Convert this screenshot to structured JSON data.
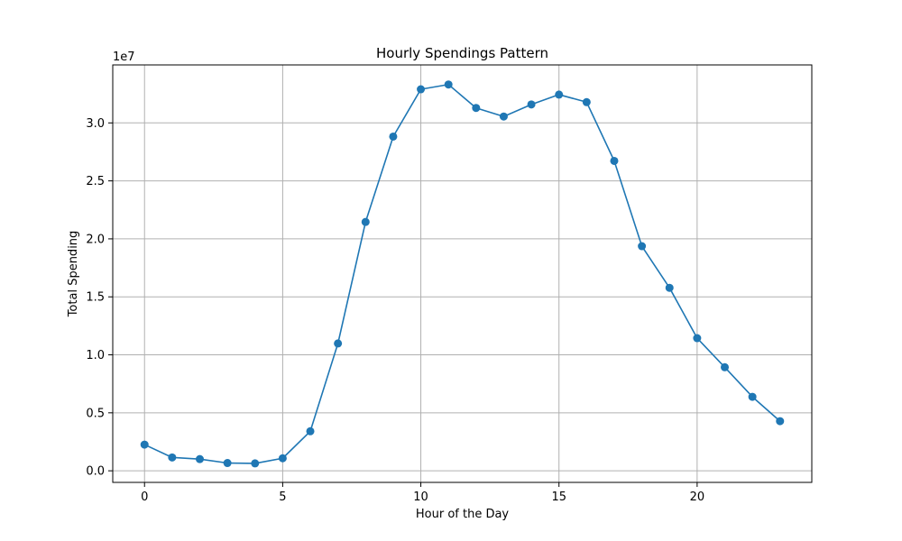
{
  "chart_data": {
    "type": "line",
    "title": "Hourly Spendings Pattern",
    "xlabel": "Hour of the Day",
    "ylabel": "Total Spending",
    "y_offset_label": "1e7",
    "xlim": [
      -1.15,
      24.15
    ],
    "ylim": [
      -0.1,
      3.5
    ],
    "x_ticks": [
      0,
      5,
      10,
      15,
      20
    ],
    "x_tick_labels": [
      "0",
      "5",
      "10",
      "15",
      "20"
    ],
    "y_ticks": [
      0.0,
      0.5,
      1.0,
      1.5,
      2.0,
      2.5,
      3.0
    ],
    "y_tick_labels": [
      "0.0",
      "0.5",
      "1.0",
      "1.5",
      "2.0",
      "2.5",
      "3.0"
    ],
    "y_unit_scale": 10000000,
    "grid": true,
    "series": [
      {
        "color": "#1f77b4",
        "marker": "circle",
        "x": [
          0,
          1,
          2,
          3,
          4,
          5,
          6,
          7,
          8,
          9,
          10,
          11,
          12,
          13,
          14,
          15,
          16,
          17,
          18,
          19,
          20,
          21,
          22,
          23
        ],
        "values": [
          0.226,
          0.115,
          0.101,
          0.067,
          0.064,
          0.108,
          0.341,
          1.098,
          2.146,
          2.882,
          3.29,
          3.331,
          3.129,
          3.055,
          3.159,
          3.244,
          3.179,
          2.672,
          1.937,
          1.578,
          1.144,
          0.893,
          0.638,
          0.428
        ]
      }
    ]
  }
}
